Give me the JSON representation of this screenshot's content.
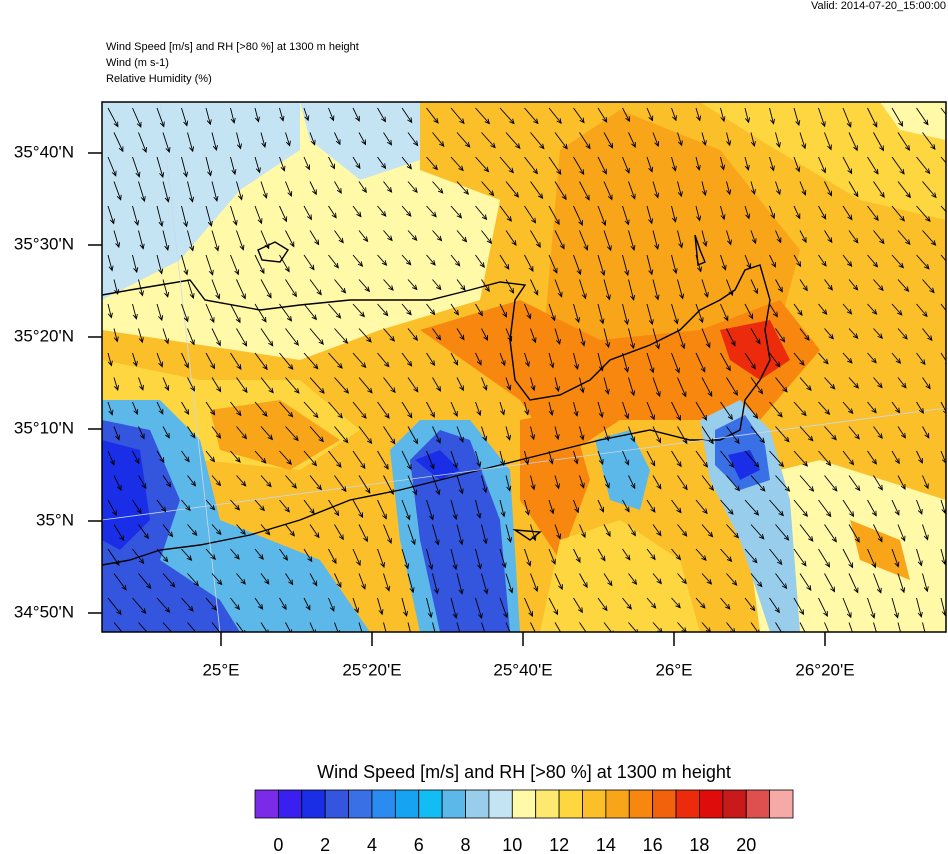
{
  "header": {
    "valid": "Valid: 2014-07-20_15:00:00",
    "lines": [
      "Wind Speed [m/s] and RH [>80 %] at 1300 m height",
      "Wind   (m s-1)",
      "Relative Humidity   (%)"
    ]
  },
  "map": {
    "lat_ticks": [
      {
        "value": 35.666667,
        "label": "35°40'N"
      },
      {
        "value": 35.5,
        "label": "35°30'N"
      },
      {
        "value": 35.333333,
        "label": "35°20'N"
      },
      {
        "value": 35.166667,
        "label": "35°10'N"
      },
      {
        "value": 35,
        "label": "35°N"
      },
      {
        "value": 34.833333,
        "label": "34°50'N"
      }
    ],
    "lon_ticks": [
      {
        "value": 25,
        "label": "25°E"
      },
      {
        "value": 25.333333,
        "label": "25°20'E"
      },
      {
        "value": 25.666667,
        "label": "25°40'E"
      },
      {
        "value": 26,
        "label": "26°E"
      },
      {
        "value": 26.333333,
        "label": "26°20'E"
      }
    ]
  },
  "colorbar": {
    "title": "Wind Speed [m/s] and RH [>80 %] at 1300 m height",
    "levels": [
      0,
      2,
      4,
      6,
      8,
      10,
      12,
      14,
      16,
      18,
      20
    ],
    "colors": [
      "#7b2be8",
      "#3b1ff0",
      "#1a2ee8",
      "#3455de",
      "#3a70e6",
      "#2a8bf0",
      "#16a4f2",
      "#12bdf3",
      "#5cb8e8",
      "#98cdeb",
      "#c4e4f4",
      "#fff9a8",
      "#fde870",
      "#fdd640",
      "#fbbf2a",
      "#f9a51a",
      "#f7870f",
      "#f2620c",
      "#ec2a0c",
      "#de0d0c",
      "#c81a1a",
      "#de5050",
      "#f6aaa8"
    ]
  }
}
